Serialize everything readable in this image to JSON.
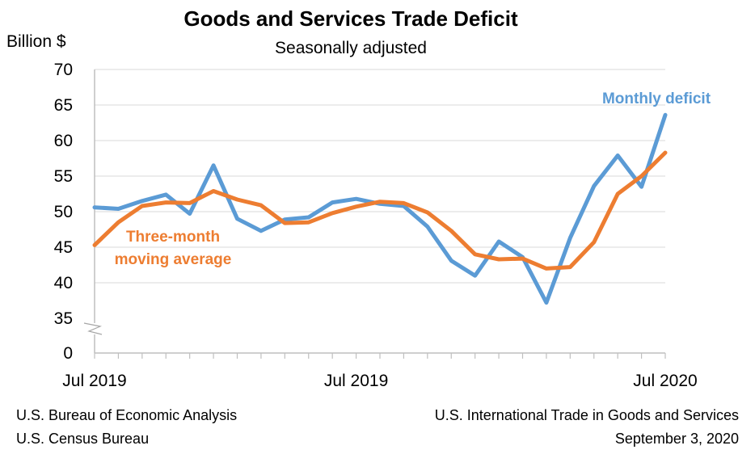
{
  "chart_data": {
    "type": "line",
    "title": "Goods and Services Trade Deficit",
    "subtitle": "Seasonally adjusted",
    "ylabel": "Billion $",
    "ylim": [
      35,
      70
    ],
    "y_ticks": [
      "70",
      "65",
      "60",
      "55",
      "50",
      "45",
      "40",
      "35",
      "0"
    ],
    "y_axis_break": true,
    "x_tick_labels": [
      "Jul 2019",
      "Jul 2019",
      "Jul 2020"
    ],
    "grid": "horizontal",
    "series": [
      {
        "name": "Monthly deficit",
        "color": "#5b9bd5",
        "values": [
          50.6,
          50.4,
          51.5,
          52.4,
          49.7,
          56.5,
          49.0,
          47.3,
          48.9,
          49.2,
          51.3,
          51.8,
          51.1,
          50.8,
          47.9,
          43.1,
          41.0,
          45.8,
          43.6,
          37.2,
          46.3,
          53.6,
          57.9,
          53.5,
          63.6
        ]
      },
      {
        "name": "Three-month moving average",
        "color": "#ed7d31",
        "values": [
          45.3,
          48.5,
          50.8,
          51.3,
          51.2,
          52.9,
          51.7,
          50.9,
          48.4,
          48.5,
          49.8,
          50.7,
          51.4,
          51.2,
          49.9,
          47.3,
          44.0,
          43.3,
          43.4,
          42.0,
          42.2,
          45.7,
          52.5,
          55.0,
          58.3
        ]
      }
    ],
    "annotations": {
      "monthly": "Monthly deficit",
      "avg_line1": "Three-month",
      "avg_line2": "moving average"
    }
  },
  "footer": {
    "source_left_1": "U.S. Bureau of Economic Analysis",
    "source_left_2": "U.S. Census Bureau",
    "source_right_1": "U.S. International Trade in Goods and Services",
    "source_right_2": "September 3, 2020"
  }
}
